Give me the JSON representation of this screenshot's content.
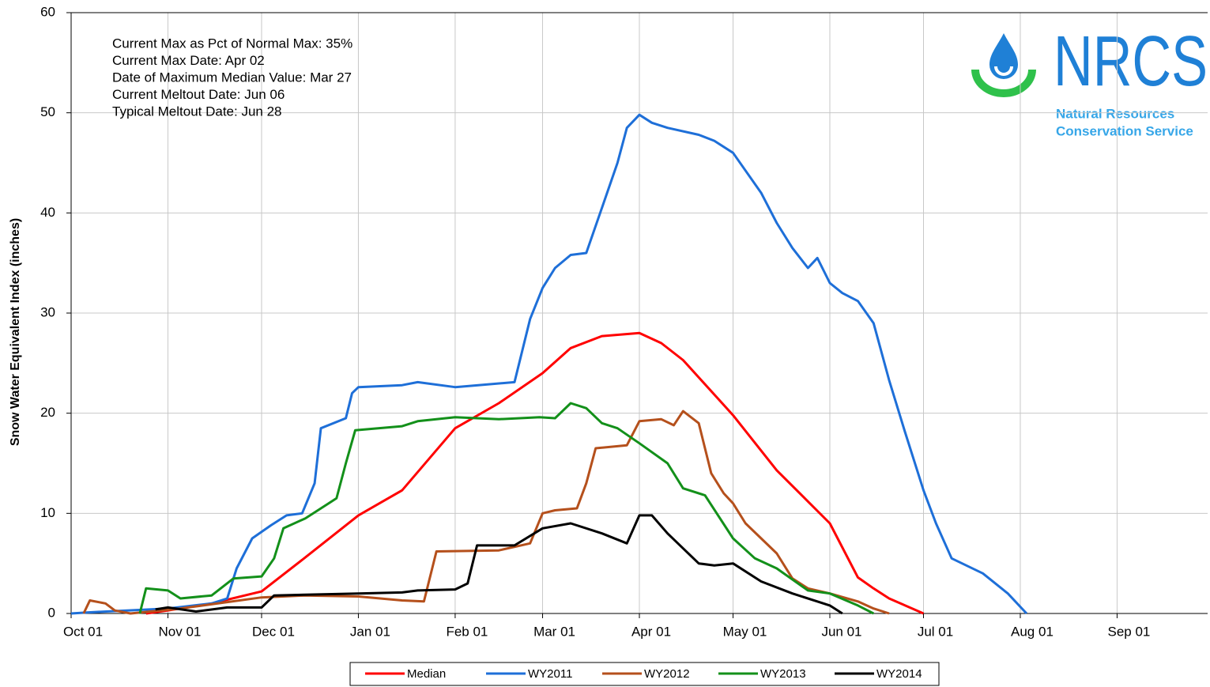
{
  "chart_data": {
    "type": "line",
    "ylabel": "Snow Water Equivalent Index (inches)",
    "annotations": [
      "Current Max as Pct of Normal Max: 35%",
      "Current Max Date: Apr 02",
      "Date of Maximum Median Value: Mar 27",
      "Current Meltout Date: Jun 06",
      "Typical Meltout Date: Jun 28"
    ],
    "logo": {
      "title": "NRCS",
      "lines": [
        "Natural Resources",
        "Conservation Service"
      ]
    },
    "xlim": [
      "Oct 01",
      "Sep 30"
    ],
    "xticks": [
      "Oct 01",
      "Nov 01",
      "Dec 01",
      "Jan 01",
      "Feb 01",
      "Mar 01",
      "Apr 01",
      "May 01",
      "Jun 01",
      "Jul 01",
      "Aug 01",
      "Sep 01"
    ],
    "ylim": [
      0,
      60
    ],
    "yticks": [
      0,
      10,
      20,
      30,
      40,
      50,
      60
    ],
    "grid": true,
    "series": [
      {
        "name": "Median",
        "color": "#ff0000",
        "x": [
          "Oct 25",
          "Nov 01",
          "Nov 15",
          "Dec 01",
          "Dec 15",
          "Jan 01",
          "Jan 15",
          "Feb 01",
          "Feb 15",
          "Mar 01",
          "Mar 10",
          "Mar 20",
          "Apr 01",
          "Apr 08",
          "Apr 15",
          "May 01",
          "May 15",
          "Jun 01",
          "Jun 10",
          "Jun 15",
          "Jun 20",
          "Jul 01"
        ],
        "values": [
          0,
          0.3,
          1,
          2.2,
          5.6,
          9.8,
          12.3,
          18.5,
          21,
          24,
          26.5,
          27.7,
          28,
          27,
          25.3,
          19.8,
          14.3,
          9,
          3.6,
          2.5,
          1.5,
          0
        ]
      },
      {
        "name": "WY2011",
        "color": "#1e6fd8",
        "x": [
          "Oct 01",
          "Oct 06",
          "Nov 01",
          "Nov 15",
          "Nov 20",
          "Nov 23",
          "Nov 28",
          "Dec 04",
          "Dec 09",
          "Dec 14",
          "Dec 18",
          "Dec 20",
          "Dec 28",
          "Dec 30",
          "Jan 01",
          "Jan 15",
          "Jan 20",
          "Feb 01",
          "Feb 20",
          "Feb 25",
          "Mar 01",
          "Mar 05",
          "Mar 10",
          "Mar 15",
          "Mar 20",
          "Mar 25",
          "Mar 28",
          "Apr 01",
          "Apr 05",
          "Apr 10",
          "Apr 20",
          "Apr 25",
          "May 01",
          "May 10",
          "May 15",
          "May 20",
          "May 25",
          "May 28",
          "Jun 01",
          "Jun 05",
          "Jun 10",
          "Jun 15",
          "Jun 20",
          "Jun 25",
          "Jul 01",
          "Jul 05",
          "Jul 10",
          "Jul 20",
          "Jul 28",
          "Aug 03"
        ],
        "values": [
          0,
          0.1,
          0.5,
          1,
          1.5,
          4.5,
          7.5,
          8.8,
          9.8,
          10,
          13,
          18.5,
          19.5,
          22,
          22.6,
          22.8,
          23.1,
          22.6,
          23.1,
          29.4,
          32.5,
          34.5,
          35.8,
          36,
          40.5,
          45,
          48.5,
          49.8,
          49,
          48.5,
          47.8,
          47.2,
          46,
          42,
          39,
          36.5,
          34.5,
          35.5,
          33,
          32,
          31.2,
          29,
          23.3,
          18.2,
          12.3,
          9,
          5.5,
          4,
          2,
          0
        ]
      },
      {
        "name": "WY2012",
        "color": "#b5501c",
        "x": [
          "Oct 05",
          "Oct 07",
          "Oct 12",
          "Oct 15",
          "Oct 20",
          "Nov 05",
          "Dec 01",
          "Dec 15",
          "Jan 01",
          "Jan 15",
          "Jan 22",
          "Jan 26",
          "Feb 15",
          "Feb 25",
          "Mar 01",
          "Mar 05",
          "Mar 12",
          "Mar 15",
          "Mar 18",
          "Mar 28",
          "Apr 01",
          "Apr 08",
          "Apr 12",
          "Apr 15",
          "Apr 20",
          "Apr 24",
          "Apr 28",
          "May 01",
          "May 05",
          "May 15",
          "May 20",
          "May 25",
          "Jun 01",
          "Jun 10",
          "Jun 15",
          "Jun 20"
        ],
        "values": [
          0,
          1.3,
          1,
          0.3,
          0,
          0.5,
          1.6,
          1.8,
          1.7,
          1.3,
          1.2,
          6.2,
          6.3,
          7,
          10,
          10.3,
          10.5,
          13,
          16.5,
          16.8,
          19.2,
          19.4,
          18.8,
          20.2,
          19,
          14,
          12,
          11,
          9,
          6,
          3.5,
          2.5,
          2,
          1.2,
          0.5,
          0
        ]
      },
      {
        "name": "WY2013",
        "color": "#13901a",
        "x": [
          "Oct 23",
          "Oct 25",
          "Nov 01",
          "Nov 05",
          "Nov 15",
          "Nov 22",
          "Dec 01",
          "Dec 05",
          "Dec 08",
          "Dec 15",
          "Dec 25",
          "Dec 28",
          "Dec 31",
          "Jan 15",
          "Jan 20",
          "Feb 01",
          "Feb 15",
          "Feb 28",
          "Mar 05",
          "Mar 10",
          "Mar 15",
          "Mar 20",
          "Mar 25",
          "Apr 01",
          "Apr 10",
          "Apr 15",
          "Apr 22",
          "May 01",
          "May 08",
          "May 15",
          "May 25",
          "Jun 01",
          "Jun 10",
          "Jun 15"
        ],
        "values": [
          0,
          2.5,
          2.3,
          1.5,
          1.8,
          3.5,
          3.7,
          5.5,
          8.5,
          9.5,
          11.5,
          15,
          18.3,
          18.7,
          19.2,
          19.6,
          19.4,
          19.6,
          19.5,
          21,
          20.5,
          19,
          18.5,
          17,
          15,
          12.5,
          11.8,
          7.5,
          5.5,
          4.5,
          2.3,
          2,
          0.8,
          0
        ]
      },
      {
        "name": "WY2014",
        "color": "#000000",
        "x": [
          "Oct 28",
          "Nov 01",
          "Nov 10",
          "Nov 20",
          "Dec 01",
          "Dec 05",
          "Jan 01",
          "Jan 15",
          "Jan 20",
          "Feb 01",
          "Feb 05",
          "Feb 08",
          "Feb 20",
          "Mar 01",
          "Mar 10",
          "Mar 20",
          "Mar 28",
          "Apr 01",
          "Apr 05",
          "Apr 10",
          "Apr 20",
          "Apr 25",
          "May 01",
          "May 10",
          "May 20",
          "Jun 01",
          "Jun 05"
        ],
        "values": [
          0.4,
          0.6,
          0.2,
          0.6,
          0.6,
          1.8,
          2,
          2.1,
          2.3,
          2.4,
          3,
          6.8,
          6.8,
          8.5,
          9,
          8,
          7,
          9.8,
          9.8,
          8,
          5,
          4.8,
          5,
          3.2,
          2,
          0.8,
          0
        ]
      }
    ]
  }
}
